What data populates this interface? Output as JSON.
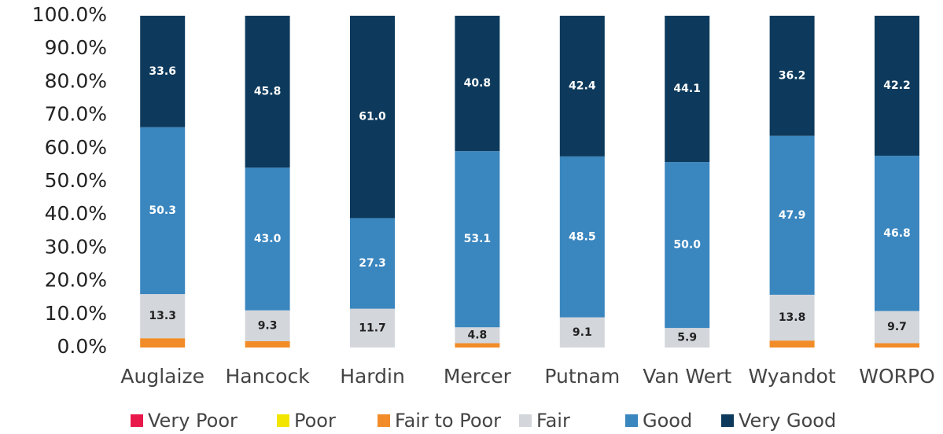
{
  "chart_data": {
    "type": "stacked_bar",
    "categories": [
      "Auglaize",
      "Hancock",
      "Hardin",
      "Mercer",
      "Putnam",
      "Van Wert",
      "Wyandot",
      "WORPO"
    ],
    "series": [
      {
        "name": "Very Poor",
        "color": "#e8194a",
        "values": [
          0,
          0,
          0,
          0,
          0,
          0,
          0,
          0
        ]
      },
      {
        "name": "Poor",
        "color": "#f2e600",
        "values": [
          0,
          0,
          0,
          0,
          0,
          0,
          0,
          0
        ]
      },
      {
        "name": "Fair to Poor",
        "color": "#f28c28",
        "values": [
          2.8,
          1.9,
          0,
          1.3,
          0,
          0,
          2.1,
          1.3
        ]
      },
      {
        "name": "Fair",
        "color": "#d3d6db",
        "values": [
          13.3,
          9.3,
          11.7,
          4.8,
          9.1,
          5.9,
          13.8,
          9.7
        ],
        "value_labels": [
          "13.3",
          "9.3",
          "11.7",
          "4.8",
          "9.1",
          "5.9",
          "13.8",
          "9.7"
        ]
      },
      {
        "name": "Good",
        "color": "#3a86bf",
        "values": [
          50.3,
          43.0,
          27.3,
          53.1,
          48.5,
          50.0,
          47.9,
          46.8
        ],
        "value_labels": [
          "50.3",
          "43.0",
          "27.3",
          "53.1",
          "48.5",
          "50.0",
          "47.9",
          "46.8"
        ]
      },
      {
        "name": "Very Good",
        "color": "#0d3a5c",
        "values": [
          33.6,
          45.8,
          61.0,
          40.8,
          42.4,
          44.1,
          36.2,
          42.2
        ],
        "value_labels": [
          "33.6",
          "45.8",
          "61.0",
          "40.8",
          "42.4",
          "44.1",
          "36.2",
          "42.2"
        ]
      }
    ],
    "ylim": [
      0,
      100
    ],
    "yticks": [
      {
        "value": 0,
        "label": "0.0%"
      },
      {
        "value": 10,
        "label": "10.0%"
      },
      {
        "value": 20,
        "label": "20.0%"
      },
      {
        "value": 30,
        "label": "30.0%"
      },
      {
        "value": 40,
        "label": "40.0%"
      },
      {
        "value": 50,
        "label": "50.0%"
      },
      {
        "value": 60,
        "label": "60.0%"
      },
      {
        "value": 70,
        "label": "70.0%"
      },
      {
        "value": 80,
        "label": "80.0%"
      },
      {
        "value": 90,
        "label": "90.0%"
      },
      {
        "value": 100,
        "label": "100.0%"
      }
    ],
    "grid": false,
    "legend": "bottom"
  }
}
